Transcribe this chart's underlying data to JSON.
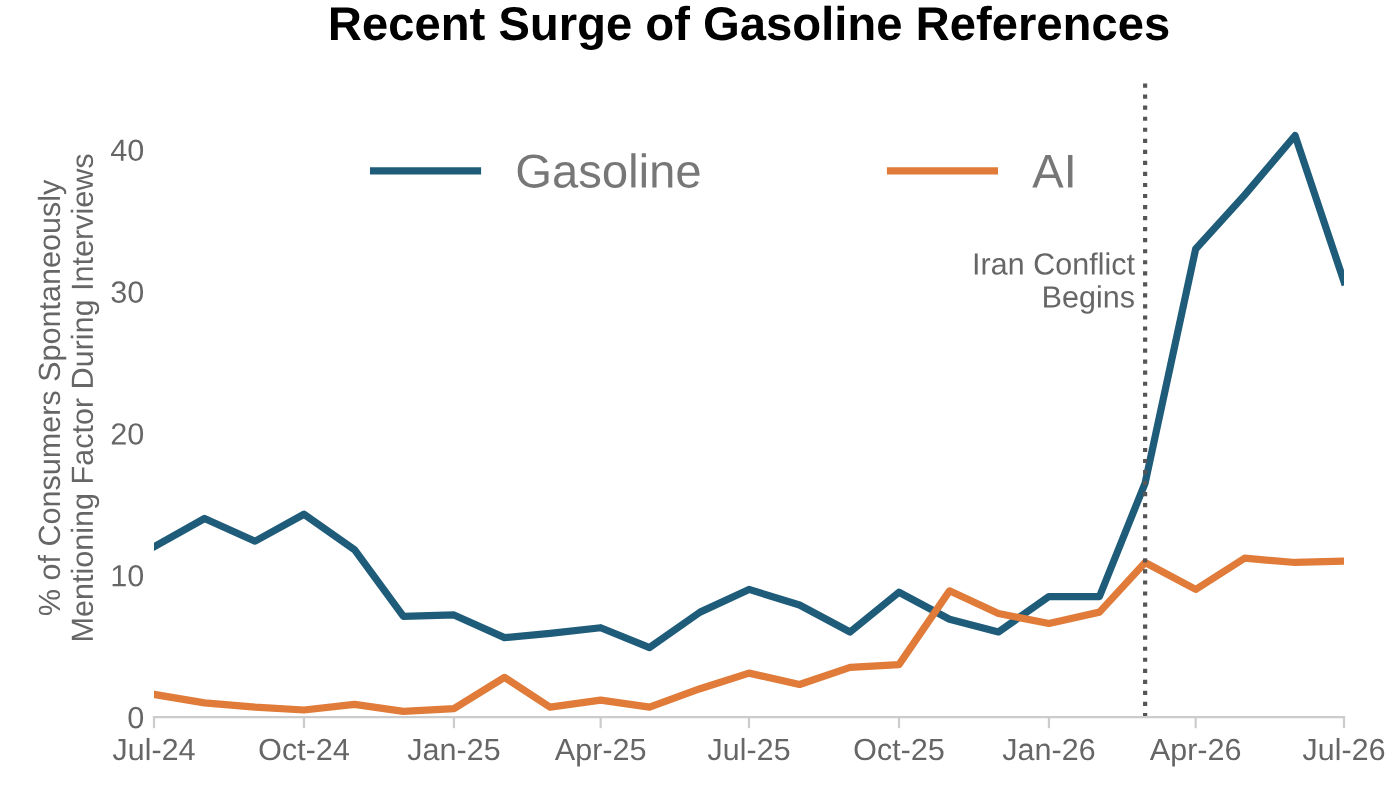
{
  "chart_data": {
    "type": "line",
    "title": "Recent Surge of Gasoline References",
    "ylabel": "% of Consumers Spontaneously\nMentioning Factor During Interviews",
    "x": [
      "2024-07",
      "2024-08",
      "2024-09",
      "2024-10",
      "2024-11",
      "2024-12",
      "2025-01",
      "2025-02",
      "2025-03",
      "2025-04",
      "2025-05",
      "2025-06",
      "2025-07",
      "2025-08",
      "2025-09",
      "2025-10",
      "2025-11",
      "2025-12",
      "2026-01",
      "2026-02",
      "2026-03",
      "2026-04",
      "2026-05",
      "2026-06",
      "2026-07"
    ],
    "series": [
      {
        "name": "Gasoline",
        "color": "#1f5c7a",
        "values": [
          12,
          14,
          12.4,
          14.3,
          11.8,
          7.1,
          7.2,
          5.6,
          5.9,
          6.3,
          4.9,
          7.4,
          9.0,
          7.9,
          6.0,
          8.8,
          6.9,
          6.0,
          8.5,
          8.5,
          16.5,
          33,
          36.8,
          41,
          30.7
        ]
      },
      {
        "name": "AI",
        "color": "#e07b39",
        "values": [
          1.6,
          1.0,
          0.7,
          0.5,
          0.9,
          0.4,
          0.6,
          2.8,
          0.7,
          1.2,
          0.7,
          2.0,
          3.1,
          2.3,
          3.5,
          3.7,
          8.9,
          7.3,
          6.6,
          7.4,
          10.9,
          9.0,
          11.2,
          10.9,
          11.0
        ]
      }
    ],
    "xlim": [
      "2024-07",
      "2026-07"
    ],
    "xticks": [
      {
        "value": "2024-07",
        "label": "Jul-24"
      },
      {
        "value": "2024-10",
        "label": "Oct-24"
      },
      {
        "value": "2025-01",
        "label": "Jan-25"
      },
      {
        "value": "2025-04",
        "label": "Apr-25"
      },
      {
        "value": "2025-07",
        "label": "Jul-25"
      },
      {
        "value": "2025-10",
        "label": "Oct-25"
      },
      {
        "value": "2026-01",
        "label": "Jan-26"
      },
      {
        "value": "2026-04",
        "label": "Apr-26"
      },
      {
        "value": "2026-07",
        "label": "Jul-26"
      }
    ],
    "ylim": [
      0,
      45
    ],
    "yticks": [
      0,
      10,
      20,
      30,
      40
    ],
    "ref_lines": [
      {
        "axis": "x",
        "value": "2026-03",
        "label": "Iran Conflict\nBegins",
        "color": "#555555",
        "line_style": "dotted"
      }
    ],
    "grid": false,
    "legend": "top",
    "marker": "none",
    "line_style": "solid"
  }
}
